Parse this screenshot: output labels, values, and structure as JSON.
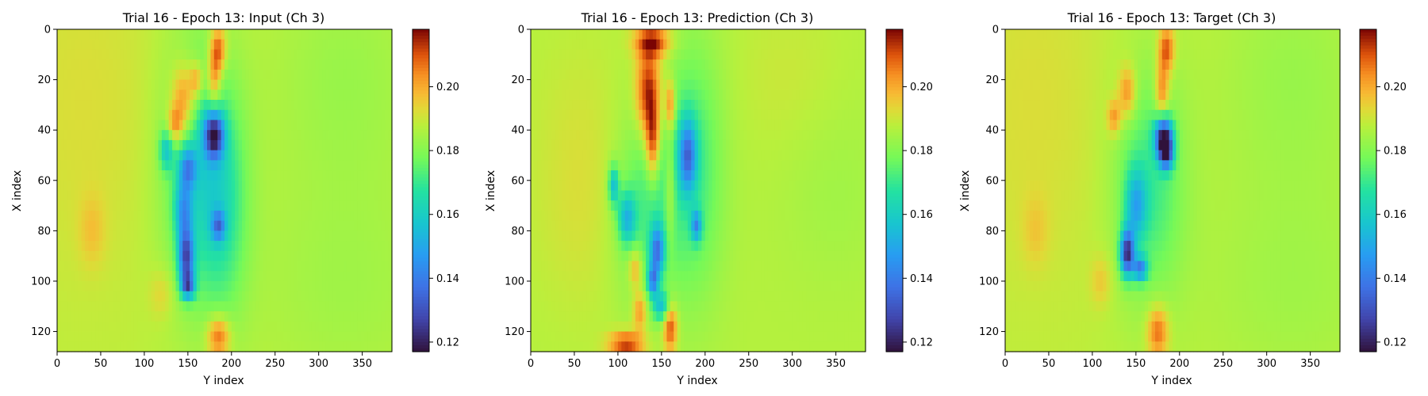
{
  "colormap": "turbo",
  "chart_data": [
    {
      "type": "heatmap",
      "title": "Trial 16 - Epoch 13: Input (Ch 3)",
      "xlabel": "Y index",
      "ylabel": "X index",
      "xlim": [
        0,
        384
      ],
      "ylim": [
        128,
        0
      ],
      "x_ticks": [
        0,
        50,
        100,
        150,
        200,
        250,
        300,
        350
      ],
      "y_ticks": [
        0,
        20,
        40,
        60,
        80,
        100,
        120
      ],
      "colorbar": {
        "min": 0.117,
        "max": 0.218,
        "ticks": [
          "0.12",
          "0.14",
          "0.16",
          "0.18",
          "0.20"
        ]
      },
      "background": 0.188,
      "features": [
        {
          "x": 30,
          "y": 30,
          "rx": 90,
          "ry": 70,
          "v": 0.192
        },
        {
          "x": 330,
          "y": 20,
          "rx": 80,
          "ry": 40,
          "v": 0.183
        },
        {
          "x": 330,
          "y": 100,
          "rx": 100,
          "ry": 45,
          "v": 0.184
        },
        {
          "x": 300,
          "y": 40,
          "rx": 70,
          "ry": 25,
          "v": 0.188
        },
        {
          "x": 160,
          "y": 55,
          "rx": 40,
          "ry": 50,
          "v": 0.168
        },
        {
          "x": 190,
          "y": 70,
          "rx": 30,
          "ry": 45,
          "v": 0.172
        },
        {
          "x": 185,
          "y": 8,
          "rx": 9,
          "ry": 9,
          "v": 0.212
        },
        {
          "x": 180,
          "y": 20,
          "rx": 8,
          "ry": 12,
          "v": 0.21
        },
        {
          "x": 145,
          "y": 28,
          "rx": 14,
          "ry": 14,
          "v": 0.212
        },
        {
          "x": 135,
          "y": 38,
          "rx": 9,
          "ry": 7,
          "v": 0.207
        },
        {
          "x": 160,
          "y": 20,
          "rx": 8,
          "ry": 7,
          "v": 0.206
        },
        {
          "x": 180,
          "y": 42,
          "rx": 11,
          "ry": 9,
          "v": 0.135
        },
        {
          "x": 150,
          "y": 55,
          "rx": 10,
          "ry": 8,
          "v": 0.16
        },
        {
          "x": 125,
          "y": 48,
          "rx": 8,
          "ry": 8,
          "v": 0.165
        },
        {
          "x": 145,
          "y": 72,
          "rx": 10,
          "ry": 12,
          "v": 0.16
        },
        {
          "x": 185,
          "y": 78,
          "rx": 8,
          "ry": 6,
          "v": 0.158
        },
        {
          "x": 148,
          "y": 91,
          "rx": 9,
          "ry": 11,
          "v": 0.14
        },
        {
          "x": 150,
          "y": 102,
          "rx": 8,
          "ry": 5,
          "v": 0.15
        },
        {
          "x": 185,
          "y": 122,
          "rx": 13,
          "ry": 8,
          "v": 0.212
        },
        {
          "x": 120,
          "y": 105,
          "rx": 14,
          "ry": 10,
          "v": 0.195
        },
        {
          "x": 40,
          "y": 80,
          "rx": 15,
          "ry": 14,
          "v": 0.195
        }
      ]
    },
    {
      "type": "heatmap",
      "title": "Trial 16 - Epoch 13: Prediction (Ch 3)",
      "xlabel": "Y index",
      "ylabel": "X index",
      "xlim": [
        0,
        384
      ],
      "ylim": [
        128,
        0
      ],
      "x_ticks": [
        0,
        50,
        100,
        150,
        200,
        250,
        300,
        350
      ],
      "y_ticks": [
        0,
        20,
        40,
        60,
        80,
        100,
        120
      ],
      "colorbar": {
        "min": 0.117,
        "max": 0.218,
        "ticks": [
          "0.12",
          "0.14",
          "0.16",
          "0.18",
          "0.20"
        ]
      },
      "background": 0.187,
      "features": [
        {
          "x": 300,
          "y": 20,
          "rx": 70,
          "ry": 30,
          "v": 0.19
        },
        {
          "x": 350,
          "y": 60,
          "rx": 60,
          "ry": 40,
          "v": 0.184
        },
        {
          "x": 60,
          "y": 60,
          "rx": 60,
          "ry": 50,
          "v": 0.192
        },
        {
          "x": 185,
          "y": 55,
          "rx": 35,
          "ry": 50,
          "v": 0.17
        },
        {
          "x": 130,
          "y": 70,
          "rx": 35,
          "ry": 40,
          "v": 0.172
        },
        {
          "x": 140,
          "y": 5,
          "rx": 20,
          "ry": 6,
          "v": 0.214
        },
        {
          "x": 135,
          "y": 25,
          "rx": 14,
          "ry": 18,
          "v": 0.218
        },
        {
          "x": 140,
          "y": 45,
          "rx": 8,
          "ry": 15,
          "v": 0.214
        },
        {
          "x": 160,
          "y": 30,
          "rx": 6,
          "ry": 10,
          "v": 0.21
        },
        {
          "x": 180,
          "y": 50,
          "rx": 10,
          "ry": 14,
          "v": 0.15
        },
        {
          "x": 190,
          "y": 78,
          "rx": 6,
          "ry": 6,
          "v": 0.155
        },
        {
          "x": 110,
          "y": 75,
          "rx": 10,
          "ry": 10,
          "v": 0.16
        },
        {
          "x": 95,
          "y": 62,
          "rx": 6,
          "ry": 8,
          "v": 0.158
        },
        {
          "x": 145,
          "y": 88,
          "rx": 8,
          "ry": 10,
          "v": 0.148
        },
        {
          "x": 140,
          "y": 100,
          "rx": 6,
          "ry": 6,
          "v": 0.152
        },
        {
          "x": 150,
          "y": 110,
          "rx": 10,
          "ry": 6,
          "v": 0.16
        },
        {
          "x": 160,
          "y": 118,
          "rx": 8,
          "ry": 10,
          "v": 0.214
        },
        {
          "x": 125,
          "y": 112,
          "rx": 8,
          "ry": 8,
          "v": 0.206
        },
        {
          "x": 110,
          "y": 125,
          "rx": 20,
          "ry": 5,
          "v": 0.214
        },
        {
          "x": 120,
          "y": 95,
          "rx": 8,
          "ry": 8,
          "v": 0.205
        },
        {
          "x": 160,
          "y": 65,
          "rx": 6,
          "ry": 20,
          "v": 0.2
        }
      ]
    },
    {
      "type": "heatmap",
      "title": "Trial 16 - Epoch 13: Target (Ch 3)",
      "xlabel": "Y index",
      "ylabel": "X index",
      "xlim": [
        0,
        384
      ],
      "ylim": [
        128,
        0
      ],
      "x_ticks": [
        0,
        50,
        100,
        150,
        200,
        250,
        300,
        350
      ],
      "y_ticks": [
        0,
        20,
        40,
        60,
        80,
        100,
        120
      ],
      "colorbar": {
        "min": 0.117,
        "max": 0.218,
        "ticks": [
          "0.12",
          "0.14",
          "0.16",
          "0.18",
          "0.20"
        ]
      },
      "background": 0.188,
      "features": [
        {
          "x": 30,
          "y": 30,
          "rx": 90,
          "ry": 70,
          "v": 0.192
        },
        {
          "x": 330,
          "y": 20,
          "rx": 80,
          "ry": 40,
          "v": 0.183
        },
        {
          "x": 330,
          "y": 100,
          "rx": 100,
          "ry": 45,
          "v": 0.184
        },
        {
          "x": 300,
          "y": 40,
          "rx": 70,
          "ry": 25,
          "v": 0.188
        },
        {
          "x": 165,
          "y": 62,
          "rx": 40,
          "ry": 45,
          "v": 0.17
        },
        {
          "x": 185,
          "y": 8,
          "rx": 9,
          "ry": 9,
          "v": 0.212
        },
        {
          "x": 180,
          "y": 25,
          "rx": 8,
          "ry": 12,
          "v": 0.21
        },
        {
          "x": 140,
          "y": 25,
          "rx": 10,
          "ry": 10,
          "v": 0.207
        },
        {
          "x": 125,
          "y": 35,
          "rx": 8,
          "ry": 7,
          "v": 0.205
        },
        {
          "x": 182,
          "y": 43,
          "rx": 10,
          "ry": 8,
          "v": 0.125
        },
        {
          "x": 185,
          "y": 50,
          "rx": 8,
          "ry": 6,
          "v": 0.15
        },
        {
          "x": 150,
          "y": 70,
          "rx": 12,
          "ry": 14,
          "v": 0.162
        },
        {
          "x": 140,
          "y": 89,
          "rx": 8,
          "ry": 9,
          "v": 0.13
        },
        {
          "x": 155,
          "y": 95,
          "rx": 8,
          "ry": 5,
          "v": 0.15
        },
        {
          "x": 175,
          "y": 120,
          "rx": 12,
          "ry": 10,
          "v": 0.21
        },
        {
          "x": 110,
          "y": 100,
          "rx": 12,
          "ry": 10,
          "v": 0.196
        },
        {
          "x": 35,
          "y": 80,
          "rx": 15,
          "ry": 14,
          "v": 0.194
        }
      ]
    }
  ]
}
